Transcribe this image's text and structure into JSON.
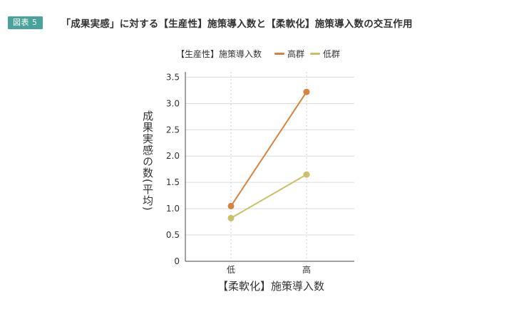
{
  "figure": {
    "badge": "図表 5",
    "title": "「成果実感」に対する【生産性】施策導入数と【柔軟化】施策導入数の交互作用"
  },
  "chart_data": {
    "type": "line",
    "legend_title": "【生産性】施策導入数",
    "categories": [
      "低",
      "高"
    ],
    "series": [
      {
        "name": "高群",
        "values": [
          1.05,
          3.22
        ],
        "color": "#d4843f"
      },
      {
        "name": "低群",
        "values": [
          0.82,
          1.65
        ],
        "color": "#c9c06a"
      }
    ],
    "xlabel": "【柔軟化】施策導入数",
    "ylabel": "成果実感の数(平均)",
    "ylim": [
      0,
      3.6
    ],
    "yticks": [
      "0",
      "0.5",
      "1.0",
      "1.5",
      "2.0",
      "2.5",
      "3.0",
      "3.5"
    ],
    "grid": true,
    "legend_position": "top"
  }
}
